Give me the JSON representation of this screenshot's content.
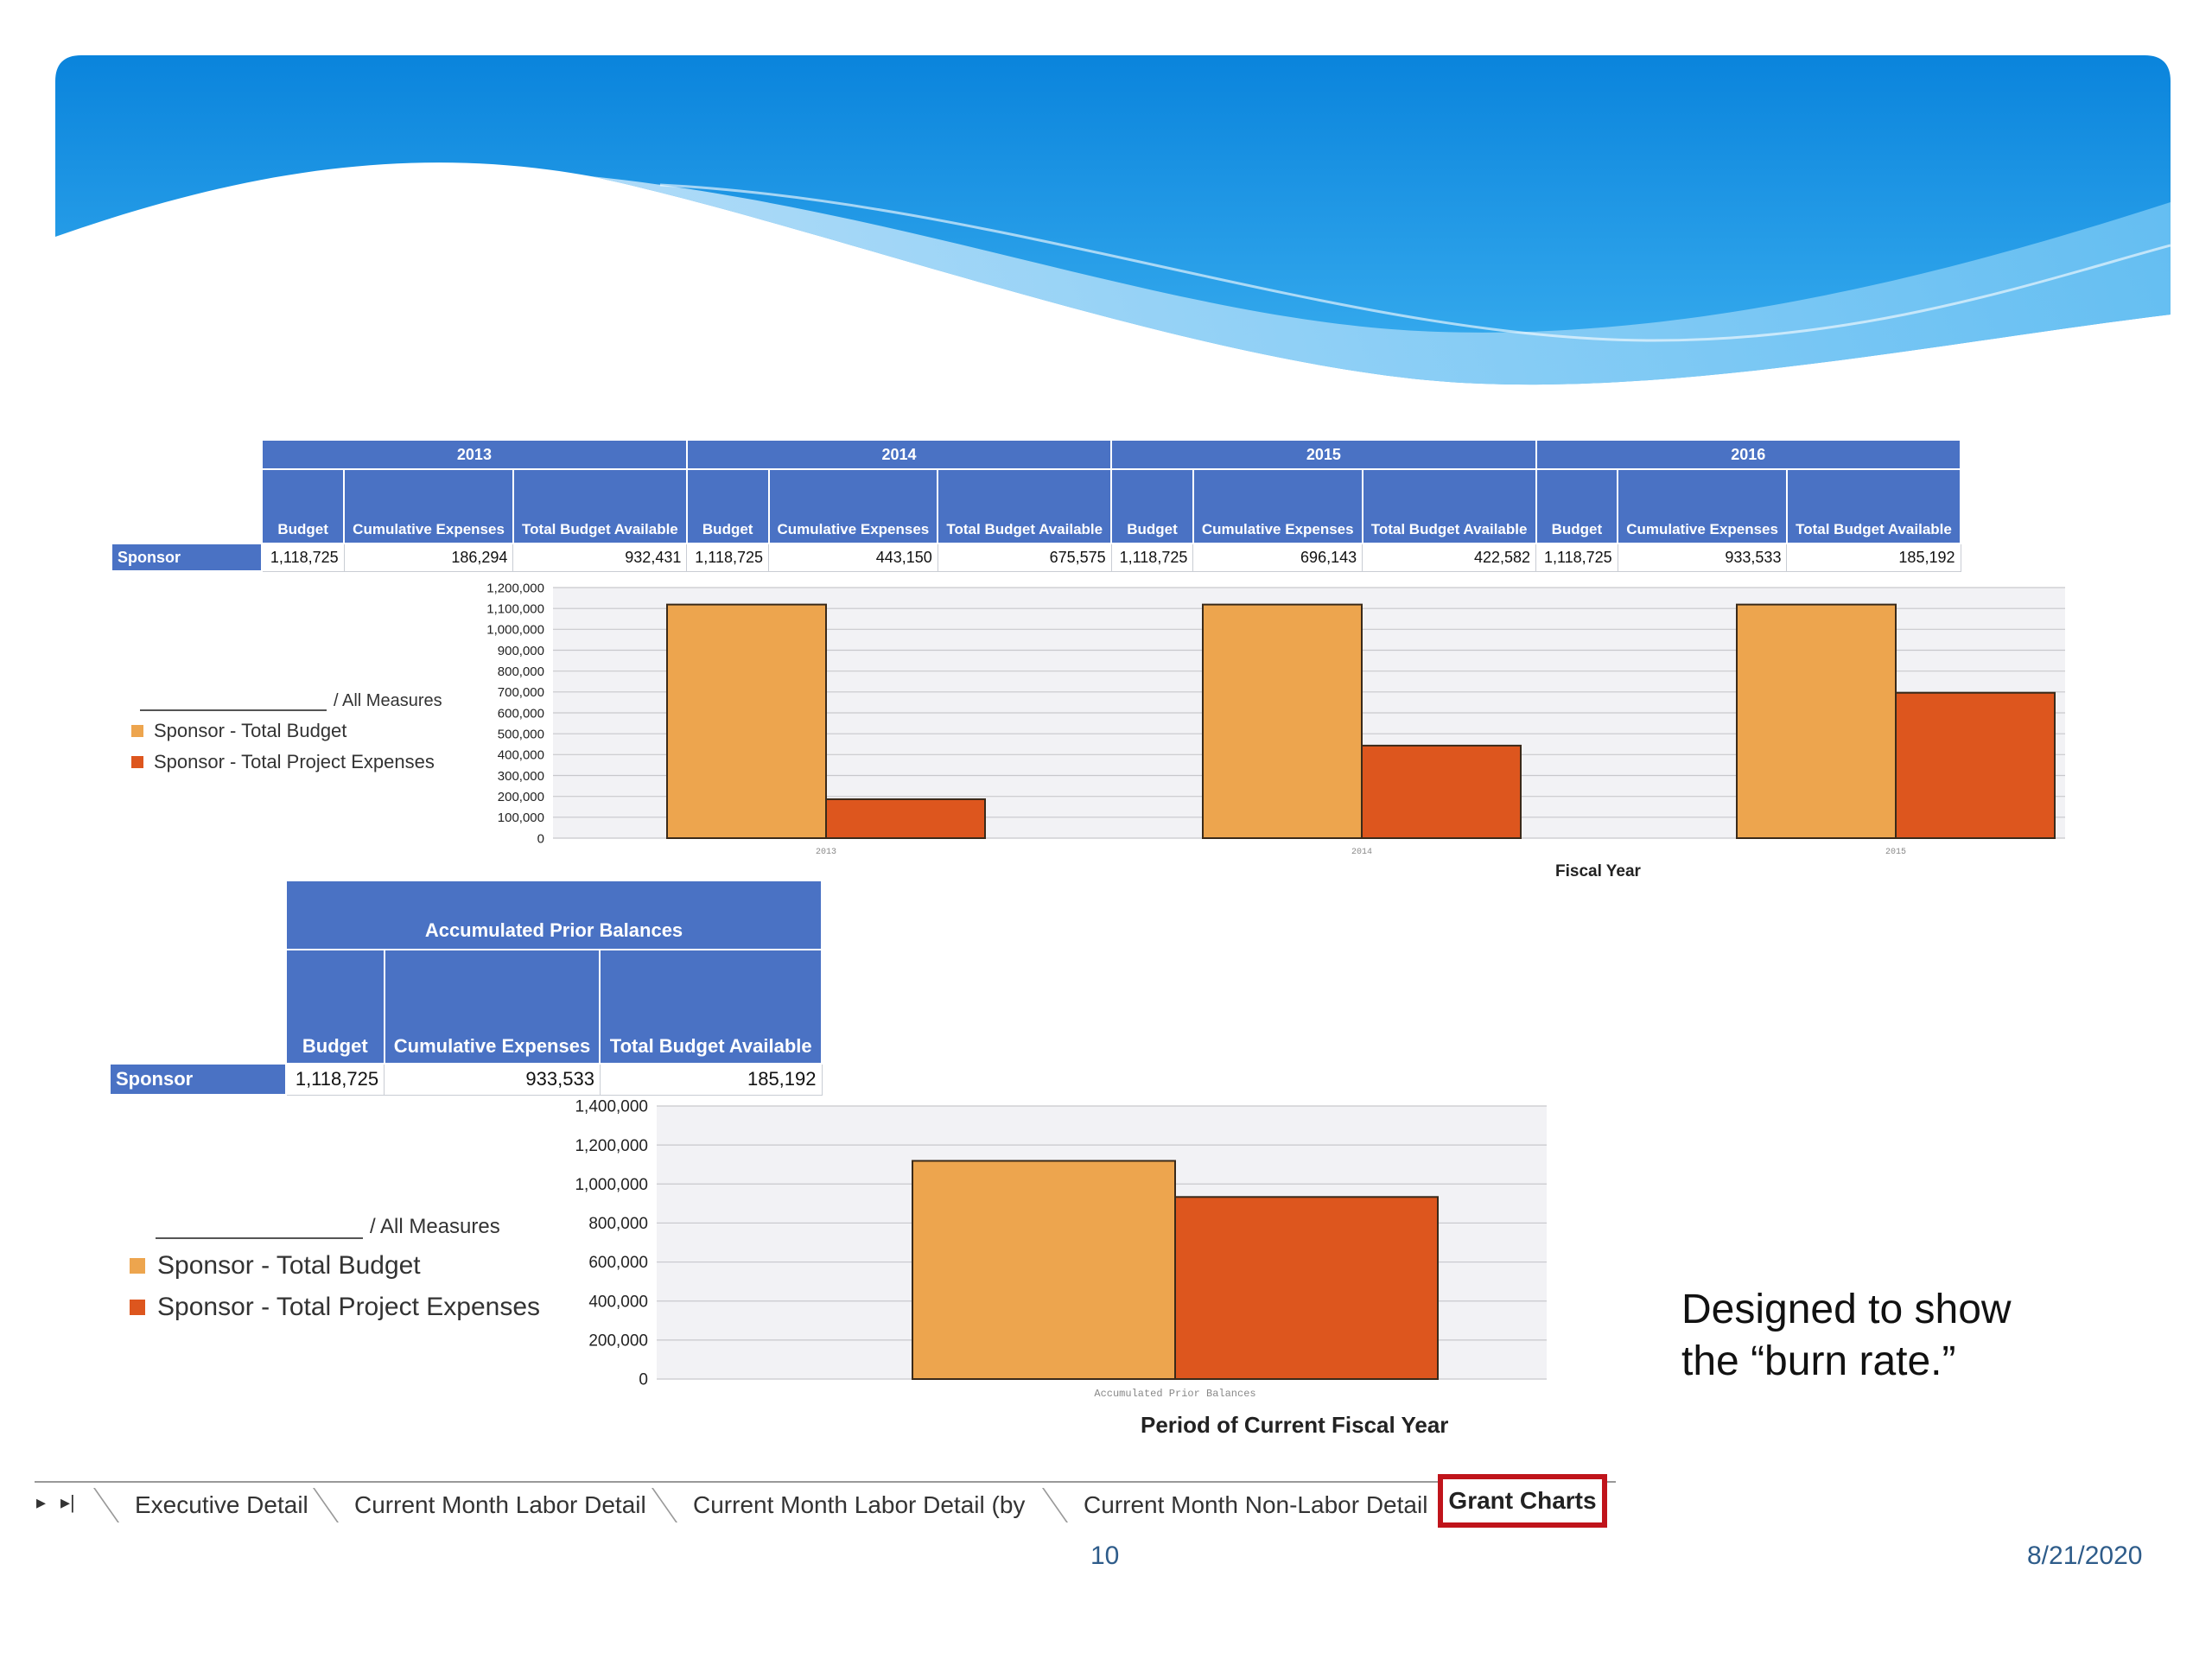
{
  "year_table": {
    "row_label": "Sponsor",
    "years": [
      {
        "year": "2013",
        "budget": "1,118,725",
        "cumulative": "186,294",
        "available": "932,431"
      },
      {
        "year": "2014",
        "budget": "1,118,725",
        "cumulative": "443,150",
        "available": "675,575"
      },
      {
        "year": "2015",
        "budget": "1,118,725",
        "cumulative": "696,143",
        "available": "422,582"
      },
      {
        "year": "2016",
        "budget": "1,118,725",
        "cumulative": "933,533",
        "available": "185,192"
      }
    ],
    "col_budget": "Budget",
    "col_cumulative": "Cumulative Expenses",
    "col_available": "Total Budget Available"
  },
  "legend": {
    "measures": "/ All Measures",
    "budget": "Sponsor - Total Budget",
    "expenses": "Sponsor - Total Project Expenses"
  },
  "acc_table": {
    "title": "Accumulated Prior Balances",
    "row_label": "Sponsor",
    "col_budget": "Budget",
    "col_cumulative": "Cumulative Expenses",
    "col_available": "Total Budget Available",
    "budget": "1,118,725",
    "cumulative": "933,533",
    "available": "185,192"
  },
  "colors": {
    "budget": "#eda54e",
    "expenses": "#dd561e",
    "header_blue": "#4a72c4",
    "tab_highlight": "#c0141b"
  },
  "chart_data": [
    {
      "type": "bar",
      "xlabel": "Fiscal Year",
      "ylabel": "",
      "ylim": [
        0,
        1200000
      ],
      "categories": [
        "2013",
        "2014",
        "2015"
      ],
      "yticks": [
        "0",
        "100,000",
        "200,000",
        "300,000",
        "400,000",
        "500,000",
        "600,000",
        "700,000",
        "800,000",
        "900,000",
        "1,000,000",
        "1,100,000",
        "1,200,000"
      ],
      "series": [
        {
          "name": "Sponsor - Total Budget",
          "values": [
            1118725,
            1118725,
            1118725
          ]
        },
        {
          "name": "Sponsor - Total Project Expenses",
          "values": [
            186294,
            443150,
            696143
          ]
        }
      ],
      "grid": true,
      "legend": "left"
    },
    {
      "type": "bar",
      "xlabel": "Period of Current Fiscal Year",
      "ylabel": "",
      "ylim": [
        0,
        1400000
      ],
      "categories": [
        "Accumulated Prior Balances"
      ],
      "yticks": [
        "0",
        "200,000",
        "400,000",
        "600,000",
        "800,000",
        "1,000,000",
        "1,200,000",
        "1,400,000"
      ],
      "series": [
        {
          "name": "Sponsor - Total Budget",
          "values": [
            1118725
          ]
        },
        {
          "name": "Sponsor - Total Project Expenses",
          "values": [
            933533
          ]
        }
      ],
      "grid": true,
      "legend": "left"
    }
  ],
  "note": "Designed to show the “burn rate.”",
  "tabs": {
    "nav_prev": "▸",
    "nav_last": "▸|",
    "items": [
      "Executive Detail",
      "Current Month Labor Detail",
      "Current Month Labor Detail (by",
      "Current Month Non-Labor Detail"
    ],
    "active": "Grant Charts"
  },
  "footer": {
    "page": "10",
    "date": "8/21/2020"
  }
}
